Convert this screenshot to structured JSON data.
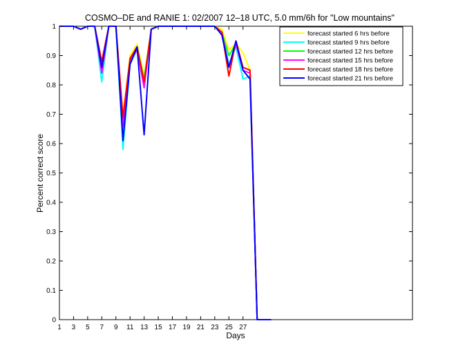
{
  "chart_data": {
    "type": "line",
    "title": "COSMO–DE and RANIE 1: 02/2007 12–18 UTC, 5.0 mm/6h for \"Low mountains\"",
    "xlabel": "Days",
    "ylabel": "Percent correct score",
    "xlim": [
      1,
      51
    ],
    "ylim": [
      0,
      1
    ],
    "xticks": [
      1,
      3,
      5,
      7,
      9,
      11,
      13,
      15,
      17,
      19,
      21,
      23,
      25,
      27
    ],
    "yticks": [
      0,
      0.1,
      0.2,
      0.3,
      0.4,
      0.5,
      0.6,
      0.7,
      0.8,
      0.9,
      1
    ],
    "ytick_labels": [
      "0",
      "0.1",
      "0.2",
      "0.3",
      "0.4",
      "0.5",
      "0.6",
      "0.7",
      "0.8",
      "0.9",
      "1"
    ],
    "grid": false,
    "legend_position": "top-right",
    "x": [
      1,
      2,
      3,
      4,
      5,
      6,
      7,
      8,
      9,
      10,
      11,
      12,
      13,
      14,
      15,
      16,
      17,
      18,
      19,
      20,
      21,
      22,
      23,
      24,
      25,
      26,
      27,
      28,
      29,
      30,
      31
    ],
    "series": [
      {
        "name": "forecast started 6 hrs before",
        "color": "#ffff00",
        "values": [
          1,
          1,
          1,
          0.99,
          1,
          1,
          0.87,
          1,
          1,
          0.69,
          0.9,
          0.94,
          0.83,
          0.99,
          1,
          1,
          1,
          1,
          1,
          1,
          1,
          1,
          1,
          0.99,
          0.92,
          0.94,
          0.91,
          0.85,
          0,
          0,
          0
        ]
      },
      {
        "name": "forecast started 9 hrs before",
        "color": "#00ffff",
        "values": [
          1,
          1,
          1,
          0.99,
          1,
          1,
          0.81,
          1,
          1,
          0.58,
          0.87,
          0.92,
          0.8,
          0.99,
          1,
          1,
          1,
          1,
          1,
          1,
          1,
          1,
          1,
          0.98,
          0.87,
          0.93,
          0.82,
          0.83,
          0,
          0,
          0
        ]
      },
      {
        "name": "forecast started 12 hrs before",
        "color": "#00ff00",
        "values": [
          1,
          1,
          1,
          0.99,
          1,
          1,
          0.85,
          1,
          1,
          0.64,
          0.88,
          0.93,
          0.82,
          0.99,
          1,
          1,
          1,
          1,
          1,
          1,
          1,
          1,
          1,
          0.98,
          0.9,
          0.94,
          0.86,
          0.85,
          0,
          0,
          0
        ]
      },
      {
        "name": "forecast started 15 hrs before",
        "color": "#ff00ff",
        "values": [
          1,
          1,
          1,
          0.99,
          1,
          1,
          0.84,
          1,
          1,
          0.66,
          0.88,
          0.92,
          0.79,
          0.99,
          1,
          1,
          1,
          1,
          1,
          1,
          1,
          1,
          1,
          0.98,
          0.86,
          0.94,
          0.85,
          0.84,
          0,
          0,
          0
        ]
      },
      {
        "name": "forecast started 18 hrs before",
        "color": "#ff0000",
        "values": [
          1,
          1,
          1,
          0.99,
          1,
          1,
          0.88,
          1,
          1,
          0.69,
          0.89,
          0.93,
          0.81,
          0.99,
          1,
          1,
          1,
          1,
          1,
          1,
          1,
          1,
          1,
          0.98,
          0.83,
          0.95,
          0.86,
          0.85,
          0,
          0,
          0
        ]
      },
      {
        "name": "forecast started 21 hrs before",
        "color": "#0000ff",
        "values": [
          1,
          1,
          1,
          0.99,
          1,
          1,
          0.86,
          1,
          1,
          0.61,
          0.87,
          0.93,
          0.63,
          0.99,
          1,
          1,
          1,
          1,
          1,
          1,
          1,
          1,
          1,
          0.97,
          0.86,
          0.95,
          0.85,
          0.82,
          0,
          0,
          0
        ]
      }
    ]
  }
}
